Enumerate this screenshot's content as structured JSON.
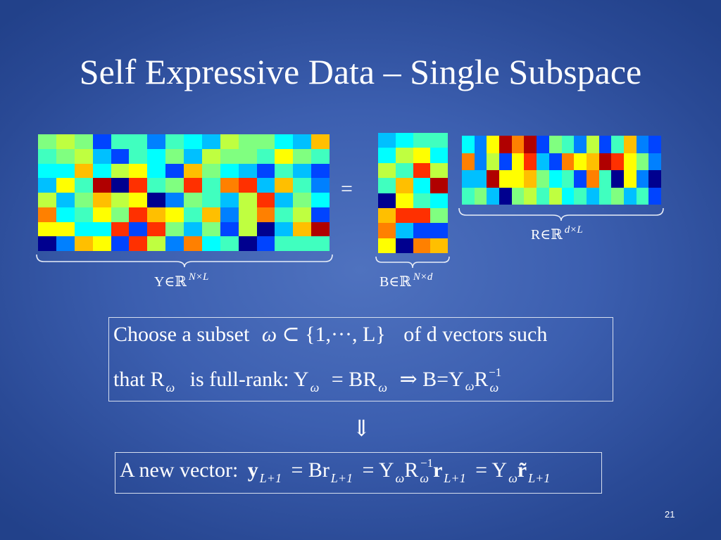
{
  "slide": {
    "title": "Self Expressive Data – Single Subspace",
    "page_number": "21"
  },
  "equation": {
    "equals": "=",
    "label_y": {
      "base": "Y∈ℝ",
      "superscript": "N×L"
    },
    "label_b": {
      "base": "B∈ℝ",
      "superscript": "N×d"
    },
    "label_r": {
      "base": "R∈ℝ",
      "superscript": "d×L"
    }
  },
  "box1": {
    "line1": {
      "text_before": "Choose a subset",
      "omega": "ω",
      "subset_symbol": "⊂",
      "set_contents": "{1,···, L}",
      "text_after": "of d vectors such"
    },
    "line2": {
      "text_that": "that R",
      "sub_omega": "ω",
      "text_fullrank": "is full-rank: Y",
      "eq": "= BR",
      "implies": "⇒ B=Y",
      "r": "R",
      "inverse": "−1"
    }
  },
  "down_arrow": "⇓",
  "box2": {
    "prefix": "A new vector:",
    "y": "y",
    "sub_l1": "L+1",
    "eq1": "= Br",
    "eq2": "= Y",
    "r": "R",
    "inverse": "−1",
    "r_bold": "r",
    "eq3": "= Y",
    "r_tilde": "r̃"
  },
  "matrices": {
    "colors": {
      "dark_blue": "#00008f",
      "blue": "#0044ff",
      "mid_blue": "#0080ff",
      "light_blue": "#00c0ff",
      "cyan": "#00ffff",
      "aqua": "#40ffbf",
      "green_cyan": "#80ff80",
      "yellow_green": "#bfff40",
      "yellow": "#ffff00",
      "orange": "#ffbf00",
      "dark_orange": "#ff8000",
      "red": "#ff3000",
      "dark_red": "#b00000"
    },
    "Y": {
      "rows": 8,
      "cols": 16,
      "cells": [
        [
          "green_cyan",
          "yellow_green",
          "green_cyan",
          "blue",
          "aqua",
          "aqua",
          "mid_blue",
          "aqua",
          "cyan",
          "light_blue",
          "yellow_green",
          "green_cyan",
          "green_cyan",
          "cyan",
          "light_blue",
          "orange"
        ],
        [
          "aqua",
          "green_cyan",
          "yellow_green",
          "light_blue",
          "blue",
          "aqua",
          "cyan",
          "green_cyan",
          "light_blue",
          "yellow_green",
          "green_cyan",
          "green_cyan",
          "aqua",
          "yellow",
          "green_cyan",
          "aqua"
        ],
        [
          "cyan",
          "cyan",
          "orange",
          "cyan",
          "yellow_green",
          "yellow",
          "cyan",
          "blue",
          "orange",
          "green_cyan",
          "cyan",
          "light_blue",
          "blue",
          "aqua",
          "light_blue",
          "blue"
        ],
        [
          "light_blue",
          "yellow",
          "aqua",
          "dark_red",
          "dark_blue",
          "red",
          "aqua",
          "green_cyan",
          "red",
          "aqua",
          "dark_orange",
          "red",
          "light_blue",
          "orange",
          "aqua",
          "mid_blue"
        ],
        [
          "yellow_green",
          "light_blue",
          "green_cyan",
          "orange",
          "yellow_green",
          "yellow",
          "dark_blue",
          "mid_blue",
          "green_cyan",
          "aqua",
          "light_blue",
          "yellow_green",
          "red",
          "light_blue",
          "green_cyan",
          "cyan"
        ],
        [
          "dark_orange",
          "cyan",
          "aqua",
          "yellow",
          "green_cyan",
          "red",
          "orange",
          "yellow",
          "aqua",
          "orange",
          "mid_blue",
          "yellow_green",
          "dark_orange",
          "aqua",
          "yellow_green",
          "blue"
        ],
        [
          "yellow",
          "yellow",
          "cyan",
          "cyan",
          "red",
          "blue",
          "red",
          "green_cyan",
          "light_blue",
          "green_cyan",
          "blue",
          "yellow_green",
          "dark_blue",
          "light_blue",
          "orange",
          "dark_red"
        ],
        [
          "dark_blue",
          "mid_blue",
          "orange",
          "yellow",
          "blue",
          "red",
          "yellow_green",
          "mid_blue",
          "dark_orange",
          "cyan",
          "aqua",
          "dark_blue",
          "blue",
          "aqua",
          "aqua",
          "aqua"
        ]
      ]
    },
    "B": {
      "rows": 8,
      "cols": 4,
      "cells": [
        [
          "light_blue",
          "cyan",
          "aqua",
          "aqua"
        ],
        [
          "cyan",
          "yellow_green",
          "yellow",
          "cyan"
        ],
        [
          "yellow_green",
          "aqua",
          "red",
          "yellow_green"
        ],
        [
          "aqua",
          "orange",
          "cyan",
          "dark_red"
        ],
        [
          "dark_blue",
          "yellow",
          "aqua",
          "cyan"
        ],
        [
          "orange",
          "red",
          "red",
          "green_cyan"
        ],
        [
          "dark_orange",
          "light_blue",
          "blue",
          "blue"
        ],
        [
          "yellow",
          "dark_blue",
          "dark_orange",
          "orange"
        ]
      ]
    },
    "R": {
      "rows": 4,
      "cols": 16,
      "cells": [
        [
          "cyan",
          "mid_blue",
          "yellow",
          "dark_red",
          "dark_orange",
          "dark_red",
          "blue",
          "green_cyan",
          "aqua",
          "mid_blue",
          "yellow_green",
          "blue",
          "aqua",
          "orange",
          "mid_blue",
          "blue"
        ],
        [
          "dark_orange",
          "mid_blue",
          "yellow_green",
          "blue",
          "yellow",
          "red",
          "light_blue",
          "blue",
          "dark_orange",
          "yellow",
          "orange",
          "dark_red",
          "red",
          "yellow",
          "green_cyan",
          "mid_blue"
        ],
        [
          "light_blue",
          "light_blue",
          "dark_red",
          "yellow",
          "yellow",
          "orange",
          "green_cyan",
          "cyan",
          "aqua",
          "blue",
          "dark_orange",
          "aqua",
          "dark_blue",
          "yellow",
          "mid_blue",
          "dark_blue"
        ],
        [
          "aqua",
          "green_cyan",
          "light_blue",
          "dark_blue",
          "green_cyan",
          "yellow_green",
          "aqua",
          "yellow_green",
          "cyan",
          "aqua",
          "light_blue",
          "aqua",
          "green_cyan",
          "light_blue",
          "aqua",
          "blue"
        ]
      ]
    }
  }
}
